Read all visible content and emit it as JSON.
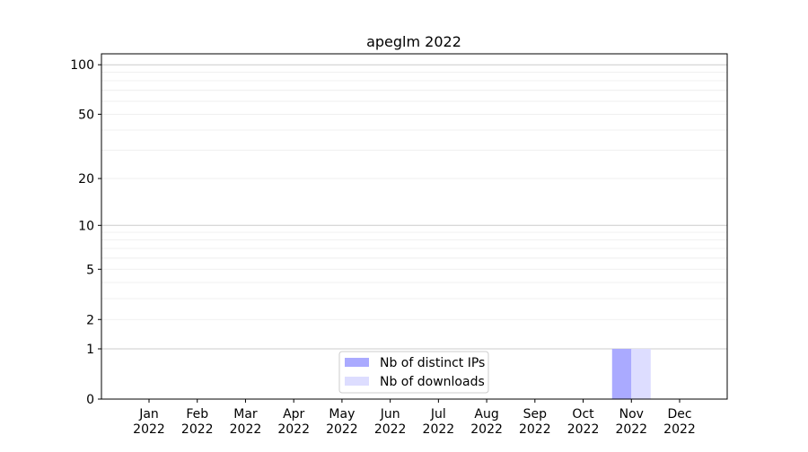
{
  "chart_data": {
    "type": "bar",
    "title": "apeglm 2022",
    "xlabel": "",
    "ylabel": "",
    "y_scale": "log(1+y)",
    "ylim": [
      0,
      116
    ],
    "y_ticks": [
      0,
      1,
      2,
      5,
      10,
      20,
      50,
      100
    ],
    "grid": true,
    "legend_position": "lower-center",
    "categories": [
      "Jan\n2022",
      "Feb\n2022",
      "Mar\n2022",
      "Apr\n2022",
      "May\n2022",
      "Jun\n2022",
      "Jul\n2022",
      "Aug\n2022",
      "Sep\n2022",
      "Oct\n2022",
      "Nov\n2022",
      "Dec\n2022"
    ],
    "series": [
      {
        "name": "Nb of distinct IPs",
        "color": "#aaaaff",
        "values": [
          0,
          0,
          0,
          0,
          0,
          0,
          0,
          0,
          0,
          0,
          1,
          0
        ]
      },
      {
        "name": "Nb of downloads",
        "color": "#ddddff",
        "values": [
          0,
          0,
          0,
          0,
          0,
          0,
          0,
          0,
          0,
          0,
          1,
          0
        ]
      }
    ]
  }
}
